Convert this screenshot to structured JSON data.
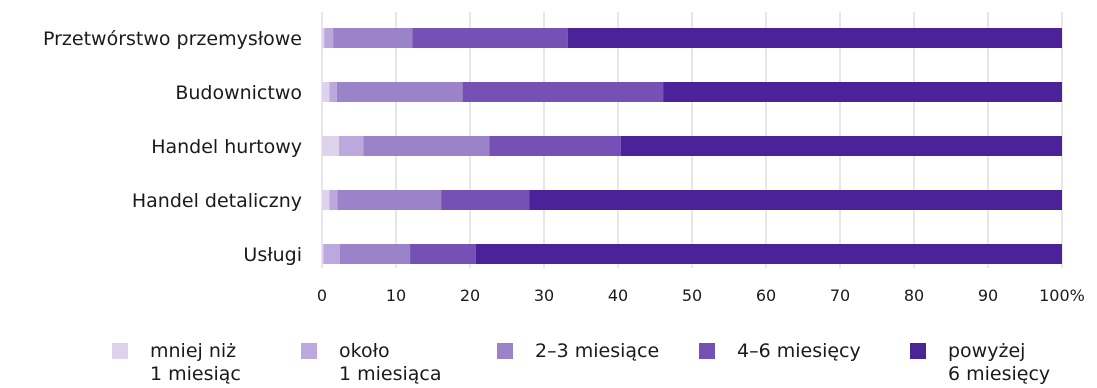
{
  "chart_data": {
    "type": "bar",
    "orientation": "horizontal",
    "stacked": true,
    "categories": [
      "Przetwórstwo przemysłowe",
      "Budownictwo",
      "Handel hurtowy",
      "Handel detaliczny",
      "Usługi"
    ],
    "series": [
      {
        "name": "mniej niż\n1 miesiąc",
        "name_lines": [
          "mniej niż",
          "1 miesiąc"
        ],
        "color": "#ddd3ed",
        "values": [
          0.3,
          1.0,
          2.3,
          1.0,
          0.2
        ]
      },
      {
        "name": "około\n1 miesiąca",
        "name_lines": [
          "około",
          "1 miesiąca"
        ],
        "color": "#bca8dc",
        "values": [
          1.2,
          1.0,
          3.3,
          1.1,
          2.2
        ]
      },
      {
        "name": "2–3 miesiące",
        "name_lines": [
          "2–3 miesiące"
        ],
        "color": "#9b83c9",
        "values": [
          10.7,
          17.0,
          17.0,
          14.0,
          9.5
        ]
      },
      {
        "name": "4–6 miesięcy",
        "name_lines": [
          "4–6 miesięcy"
        ],
        "color": "#7550b5",
        "values": [
          21.0,
          27.1,
          17.8,
          11.9,
          8.9
        ]
      },
      {
        "name": "powyżej\n6 miesięcy",
        "name_lines": [
          "powyżej",
          "6 miesięcy"
        ],
        "color": "#4b2297",
        "values": [
          66.8,
          53.9,
          59.6,
          72.0,
          79.2
        ]
      }
    ],
    "xlim": [
      0,
      100
    ],
    "xticks": [
      "0",
      "10",
      "20",
      "30",
      "40",
      "50",
      "60",
      "70",
      "80",
      "90",
      "100%"
    ],
    "tick_values": [
      0,
      10,
      20,
      30,
      40,
      50,
      60,
      70,
      80,
      90,
      100
    ],
    "grid": "vertical",
    "legend_position": "bottom",
    "title": "",
    "xlabel": "",
    "ylabel": ""
  }
}
